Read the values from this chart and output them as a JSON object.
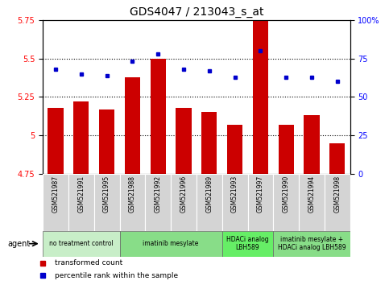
{
  "title": "GDS4047 / 213043_s_at",
  "samples": [
    "GSM521987",
    "GSM521991",
    "GSM521995",
    "GSM521988",
    "GSM521992",
    "GSM521996",
    "GSM521989",
    "GSM521993",
    "GSM521997",
    "GSM521990",
    "GSM521994",
    "GSM521998"
  ],
  "bar_values": [
    5.18,
    5.22,
    5.17,
    5.38,
    5.5,
    5.18,
    5.15,
    5.07,
    5.75,
    5.07,
    5.13,
    4.95
  ],
  "dot_values": [
    68,
    65,
    64,
    73,
    78,
    68,
    67,
    63,
    80,
    63,
    63,
    60
  ],
  "bar_color": "#cc0000",
  "dot_color": "#0000cc",
  "ylim_left": [
    4.75,
    5.75
  ],
  "ylim_right": [
    0,
    100
  ],
  "yticks_left": [
    4.75,
    5.0,
    5.25,
    5.5,
    5.75
  ],
  "yticks_right": [
    0,
    25,
    50,
    75,
    100
  ],
  "ytick_labels_left": [
    "4.75",
    "5",
    "5.25",
    "5.5",
    "5.75"
  ],
  "ytick_labels_right": [
    "0",
    "25",
    "50",
    "75",
    "100%"
  ],
  "hlines": [
    5.0,
    5.25,
    5.5
  ],
  "groups": [
    {
      "label": "no treatment control",
      "start": 0,
      "end": 2,
      "color": "#c8eec8"
    },
    {
      "label": "imatinib mesylate",
      "start": 3,
      "end": 6,
      "color": "#88dd88"
    },
    {
      "label": "HDACi analog\nLBH589",
      "start": 7,
      "end": 8,
      "color": "#66ee66"
    },
    {
      "label": "imatinib mesylate +\nHDACi analog LBH589",
      "start": 9,
      "end": 11,
      "color": "#88dd88"
    }
  ],
  "legend_items": [
    {
      "label": "transformed count",
      "color": "#cc0000"
    },
    {
      "label": "percentile rank within the sample",
      "color": "#0000cc"
    }
  ],
  "agent_label": "agent",
  "title_fontsize": 10
}
